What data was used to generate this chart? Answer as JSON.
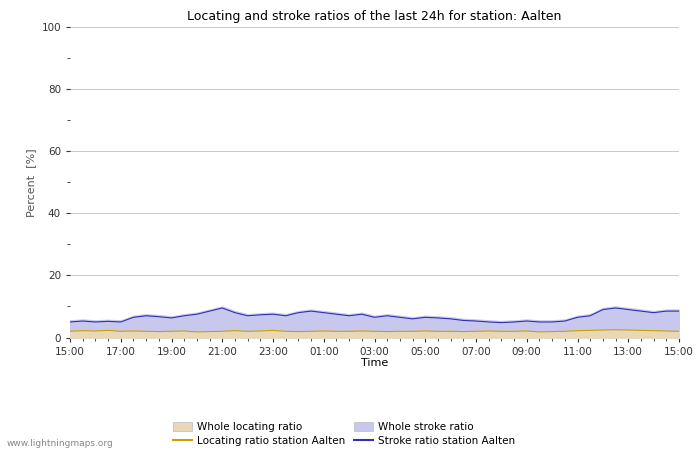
{
  "title": "Locating and stroke ratios of the last 24h for station: Aalten",
  "xlabel": "Time",
  "ylabel": "Percent  [%]",
  "ylim": [
    0,
    100
  ],
  "yticks": [
    0,
    20,
    40,
    60,
    80,
    100
  ],
  "yticks_minor": [
    10,
    30,
    50,
    70,
    90
  ],
  "x_labels": [
    "15:00",
    "17:00",
    "19:00",
    "21:00",
    "23:00",
    "01:00",
    "03:00",
    "05:00",
    "07:00",
    "09:00",
    "11:00",
    "13:00",
    "15:00"
  ],
  "bg_color": "#ffffff",
  "plot_bg_color": "#ffffff",
  "grid_color": "#c8c8c8",
  "watermark": "www.lightningmaps.org",
  "whole_locating_color": "#e8d8b8",
  "whole_stroke_color": "#c8c8ee",
  "locating_station_color": "#c8a000",
  "stroke_station_color": "#3030b0",
  "whole_locating_ratio": [
    2.0,
    2.2,
    2.1,
    2.3,
    2.0,
    2.1,
    2.0,
    1.9,
    2.0,
    2.1,
    1.8,
    1.9,
    2.0,
    2.2,
    2.0,
    2.1,
    2.3,
    2.0,
    1.9,
    2.0,
    2.1,
    2.0,
    2.0,
    2.1,
    2.0,
    1.9,
    2.0,
    2.0,
    2.1,
    2.0,
    2.0,
    1.9,
    2.0,
    2.1,
    2.0,
    2.0,
    2.1,
    1.8,
    1.9,
    2.0,
    2.2,
    2.3,
    2.4,
    2.5,
    2.4,
    2.3,
    2.2,
    2.1,
    2.0
  ],
  "whole_stroke_ratio": [
    5.5,
    5.8,
    5.5,
    5.7,
    5.5,
    7.0,
    7.5,
    7.2,
    6.8,
    7.5,
    8.0,
    9.0,
    10.0,
    8.5,
    7.5,
    7.8,
    8.0,
    7.5,
    8.5,
    9.0,
    8.5,
    8.0,
    7.5,
    8.0,
    7.0,
    7.5,
    7.0,
    6.5,
    7.0,
    6.8,
    6.5,
    6.0,
    5.8,
    5.5,
    5.3,
    5.5,
    5.8,
    5.5,
    5.5,
    5.8,
    7.0,
    7.5,
    9.5,
    10.0,
    9.5,
    9.0,
    8.5,
    9.0,
    9.0
  ],
  "locating_station_ratio": [
    2.0,
    2.2,
    2.1,
    2.3,
    2.0,
    2.1,
    2.0,
    1.9,
    2.0,
    2.1,
    1.8,
    1.9,
    2.0,
    2.2,
    2.0,
    2.1,
    2.3,
    2.0,
    1.9,
    2.0,
    2.1,
    2.0,
    2.0,
    2.1,
    2.0,
    1.9,
    2.0,
    2.0,
    2.1,
    2.0,
    2.0,
    1.9,
    2.0,
    2.1,
    2.0,
    2.0,
    2.1,
    1.8,
    1.9,
    2.0,
    2.2,
    2.3,
    2.4,
    2.5,
    2.4,
    2.3,
    2.2,
    2.1,
    2.0
  ],
  "stroke_station_ratio": [
    5.0,
    5.3,
    5.0,
    5.2,
    5.0,
    6.5,
    7.0,
    6.7,
    6.3,
    7.0,
    7.5,
    8.5,
    9.5,
    8.0,
    7.0,
    7.3,
    7.5,
    7.0,
    8.0,
    8.5,
    8.0,
    7.5,
    7.0,
    7.5,
    6.5,
    7.0,
    6.5,
    6.0,
    6.5,
    6.3,
    6.0,
    5.5,
    5.3,
    5.0,
    4.8,
    5.0,
    5.3,
    5.0,
    5.0,
    5.3,
    6.5,
    7.0,
    9.0,
    9.5,
    9.0,
    8.5,
    8.0,
    8.5,
    8.5
  ],
  "n_points": 49
}
